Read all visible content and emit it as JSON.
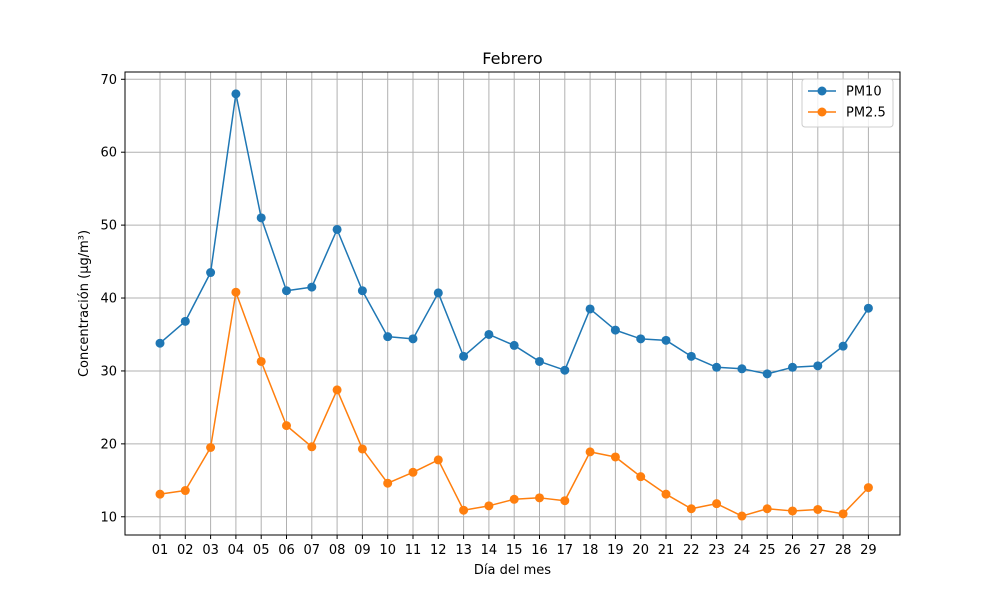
{
  "chart_data": {
    "type": "line",
    "title": "Febrero",
    "xlabel": "Día del mes",
    "ylabel": "Concentración (µg/m³)",
    "categories": [
      "01",
      "02",
      "03",
      "04",
      "05",
      "06",
      "07",
      "08",
      "09",
      "10",
      "11",
      "12",
      "13",
      "14",
      "15",
      "16",
      "17",
      "18",
      "19",
      "20",
      "21",
      "22",
      "23",
      "24",
      "25",
      "26",
      "27",
      "28",
      "29"
    ],
    "ylim": [
      7.5,
      71
    ],
    "yticks": [
      10,
      20,
      30,
      40,
      50,
      60,
      70
    ],
    "grid": true,
    "legend_position": "top-right",
    "marker": "circle",
    "series": [
      {
        "name": "PM10",
        "color": "#1f77b4",
        "values": [
          33.8,
          36.8,
          43.5,
          68.0,
          51.0,
          41.0,
          41.5,
          49.4,
          41.0,
          34.7,
          34.4,
          40.7,
          32.0,
          35.0,
          33.5,
          31.3,
          30.1,
          38.5,
          35.6,
          34.4,
          34.2,
          32.0,
          30.5,
          30.3,
          29.6,
          30.5,
          30.7,
          33.4,
          38.6
        ]
      },
      {
        "name": "PM2.5",
        "color": "#ff7f0e",
        "values": [
          13.1,
          13.6,
          19.5,
          40.8,
          31.3,
          22.5,
          19.6,
          27.4,
          19.3,
          14.6,
          16.1,
          17.8,
          10.9,
          11.5,
          12.4,
          12.6,
          12.2,
          18.9,
          18.2,
          15.5,
          13.1,
          11.1,
          11.8,
          10.1,
          11.1,
          10.8,
          11.0,
          10.4,
          14.0
        ]
      }
    ]
  }
}
